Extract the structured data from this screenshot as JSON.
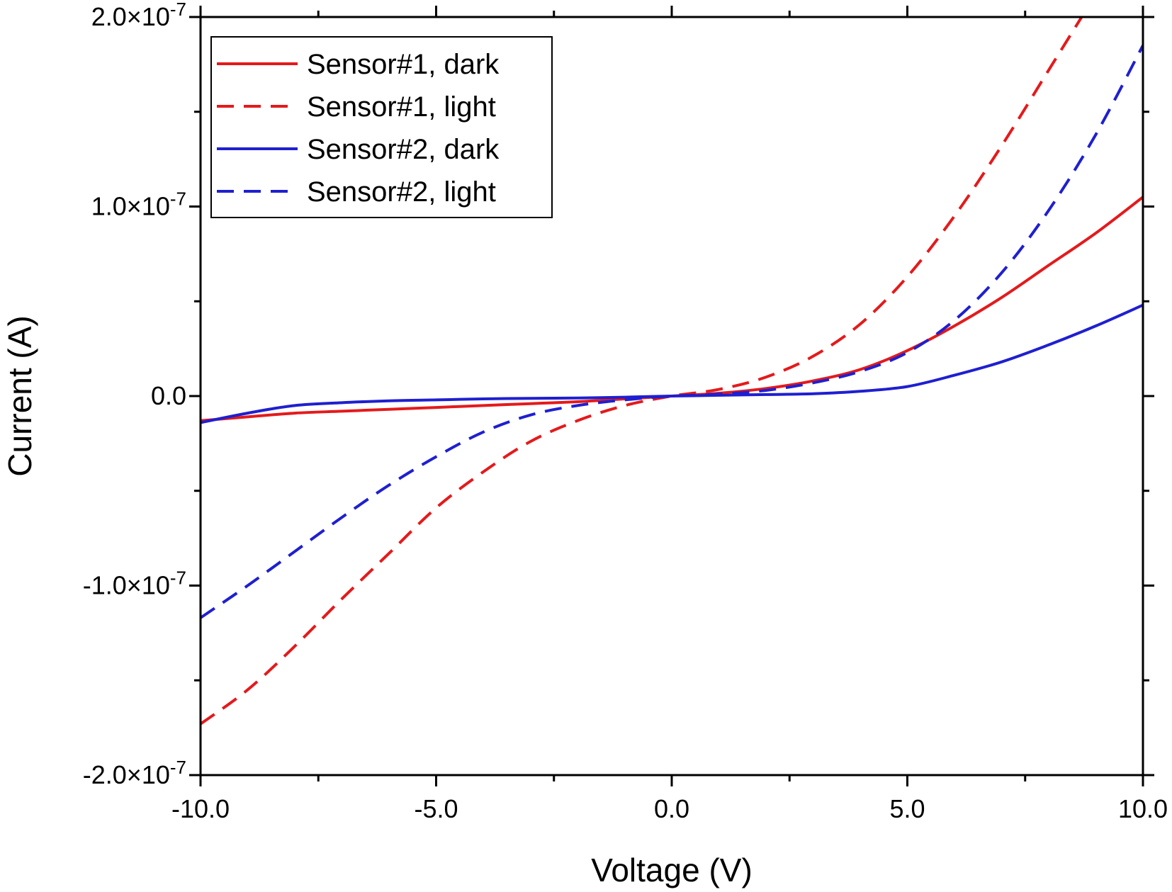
{
  "chart_data": {
    "type": "line",
    "title": "",
    "xlabel": "Voltage (V)",
    "ylabel": "Current (A)",
    "xlim": [
      -10,
      10
    ],
    "ylim": [
      -2e-07,
      2e-07
    ],
    "x_ticks": [
      -10,
      -5,
      0,
      5,
      10
    ],
    "y_ticks": [
      -2e-07,
      -1e-07,
      0,
      1e-07,
      2e-07
    ],
    "x_tick_labels": [
      "-10.0",
      "-5.0",
      "0.0",
      "5.0",
      "10.0"
    ],
    "y_tick_labels": [
      {
        "base": "-2.0×10",
        "exp": "-7"
      },
      {
        "base": "-1.0×10",
        "exp": "-7"
      },
      {
        "base": "0.0",
        "exp": ""
      },
      {
        "base": "1.0×10",
        "exp": "-7"
      },
      {
        "base": "2.0×10",
        "exp": "-7"
      }
    ],
    "grid": false,
    "legend_position": "top-left",
    "series": [
      {
        "name": "Sensor#1, dark",
        "color": "#e41a1c",
        "style": "solid",
        "x": [
          -10,
          -9,
          -8,
          -7,
          -6,
          -5,
          -4,
          -3,
          -2,
          -1,
          0,
          1,
          2,
          3,
          4,
          5,
          6,
          7,
          8,
          9,
          10
        ],
        "y": [
          -1.3e-08,
          -1.1e-08,
          -9e-09,
          -8e-09,
          -7e-09,
          -6e-09,
          -5e-09,
          -4e-09,
          -3e-09,
          -1.5e-09,
          0,
          1.5e-09,
          4e-09,
          8e-09,
          1.4e-08,
          2.4e-08,
          3.7e-08,
          5.2e-08,
          6.9e-08,
          8.6e-08,
          1.05e-07
        ]
      },
      {
        "name": "Sensor#1, light",
        "color": "#e41a1c",
        "style": "dashed",
        "x": [
          -10,
          -9,
          -8,
          -7,
          -6,
          -5,
          -4,
          -3,
          -2,
          -1,
          0,
          1,
          2,
          3,
          4,
          5,
          6,
          7,
          8,
          8.7
        ],
        "y": [
          -1.73e-07,
          -1.55e-07,
          -1.32e-07,
          -1.07e-07,
          -8.3e-08,
          -5.9e-08,
          -4e-08,
          -2.4e-08,
          -1.3e-08,
          -5e-09,
          0,
          3.5e-09,
          1e-08,
          2.1e-08,
          3.8e-08,
          6.3e-08,
          9.5e-08,
          1.32e-07,
          1.72e-07,
          2e-07
        ]
      },
      {
        "name": "Sensor#2, dark",
        "color": "#1f1fd0",
        "style": "solid",
        "x": [
          -10,
          -9,
          -8,
          -7,
          -6,
          -5,
          -4,
          -3,
          -2,
          -1,
          0,
          1,
          2,
          3,
          4,
          5,
          6,
          7,
          8,
          9,
          10
        ],
        "y": [
          -1.4e-08,
          -9e-09,
          -5e-09,
          -3.5e-09,
          -2.5e-09,
          -2e-09,
          -1.5e-09,
          -1.2e-09,
          -1e-09,
          -6e-10,
          0,
          4e-10,
          8e-10,
          1.2e-09,
          2.5e-09,
          5e-09,
          1.1e-08,
          1.8e-08,
          2.7e-08,
          3.7e-08,
          4.8e-08
        ]
      },
      {
        "name": "Sensor#2, light",
        "color": "#1f1fd0",
        "style": "dashed",
        "x": [
          -10,
          -9,
          -8,
          -7,
          -6,
          -5,
          -4,
          -3,
          -2,
          -1,
          0,
          1,
          2,
          3,
          4,
          5,
          6,
          7,
          8,
          9,
          10
        ],
        "y": [
          -1.17e-07,
          -1e-07,
          -8.2e-08,
          -6.4e-08,
          -4.7e-08,
          -3.2e-08,
          -1.9e-08,
          -1e-08,
          -5e-09,
          -2e-09,
          0,
          1e-09,
          3e-09,
          7e-09,
          1.3e-08,
          2.3e-08,
          4e-08,
          6.5e-08,
          9.8e-08,
          1.38e-07,
          1.85e-07
        ]
      }
    ]
  }
}
